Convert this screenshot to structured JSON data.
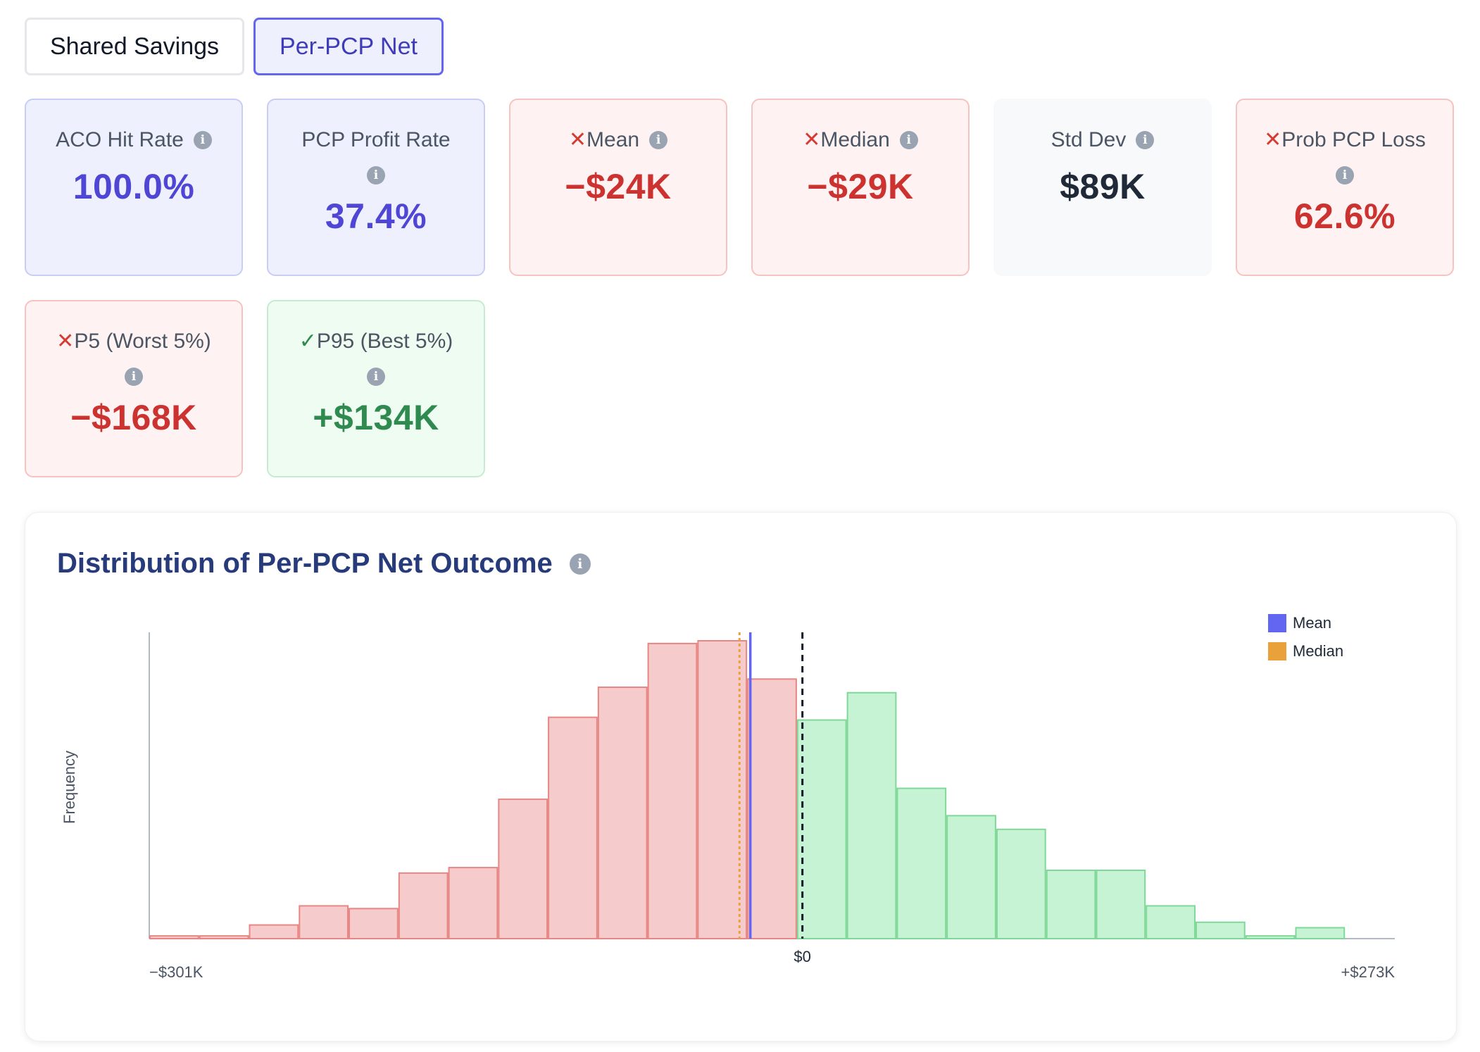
{
  "tabs": [
    {
      "label": "Shared Savings",
      "active": false
    },
    {
      "label": "Per-PCP Net",
      "active": true
    }
  ],
  "cards": {
    "aco_hit_rate": {
      "label": "ACO Hit Rate",
      "value": "100.0%"
    },
    "pcp_profit_rate": {
      "label": "PCP Profit Rate",
      "value": "37.4%"
    },
    "mean": {
      "mark": "✕",
      "label": "Mean",
      "value": "−$24K"
    },
    "median": {
      "mark": "✕",
      "label": "Median",
      "value": "−$29K"
    },
    "std_dev": {
      "label": "Std Dev",
      "value": "$89K"
    },
    "prob_pcp_loss": {
      "mark": "✕",
      "label": "Prob PCP Loss",
      "value": "62.6%"
    },
    "p5": {
      "mark": "✕",
      "label": "P5 (Worst 5%)",
      "value": "−$168K"
    },
    "p95": {
      "mark": "✓",
      "label": "P95 (Best 5%)",
      "value": "+$134K"
    }
  },
  "icons": {
    "info": "info-icon"
  },
  "colors": {
    "accent": "#6366f1",
    "loss_fill": "#f5cccb",
    "loss_stroke": "#e88683",
    "gain_fill": "#c6f3d3",
    "gain_stroke": "#7fd897",
    "mean_line": "#6366f1",
    "median_line": "#e9a23b",
    "zero_line": "#111827"
  },
  "chart_data": {
    "type": "bar",
    "title": "Distribution of Per-PCP Net Outcome",
    "ylabel": "Frequency",
    "xlabel": "",
    "x_range": [
      -301000,
      273000
    ],
    "x_tick_labels": {
      "min": "−$301K",
      "zero": "$0",
      "max": "+$273K"
    },
    "bin_count": 25,
    "frequencies": [
      1,
      1,
      5,
      12,
      11,
      24,
      26,
      51,
      81,
      92,
      108,
      109,
      95,
      80,
      90,
      55,
      45,
      40,
      25,
      25,
      12,
      6,
      1,
      4,
      0
    ],
    "mean": -24000,
    "median": -29000,
    "legend": [
      {
        "name": "Mean",
        "color": "#6366f1"
      },
      {
        "name": "Median",
        "color": "#e9a23b"
      }
    ],
    "legend_position": "top-right"
  }
}
